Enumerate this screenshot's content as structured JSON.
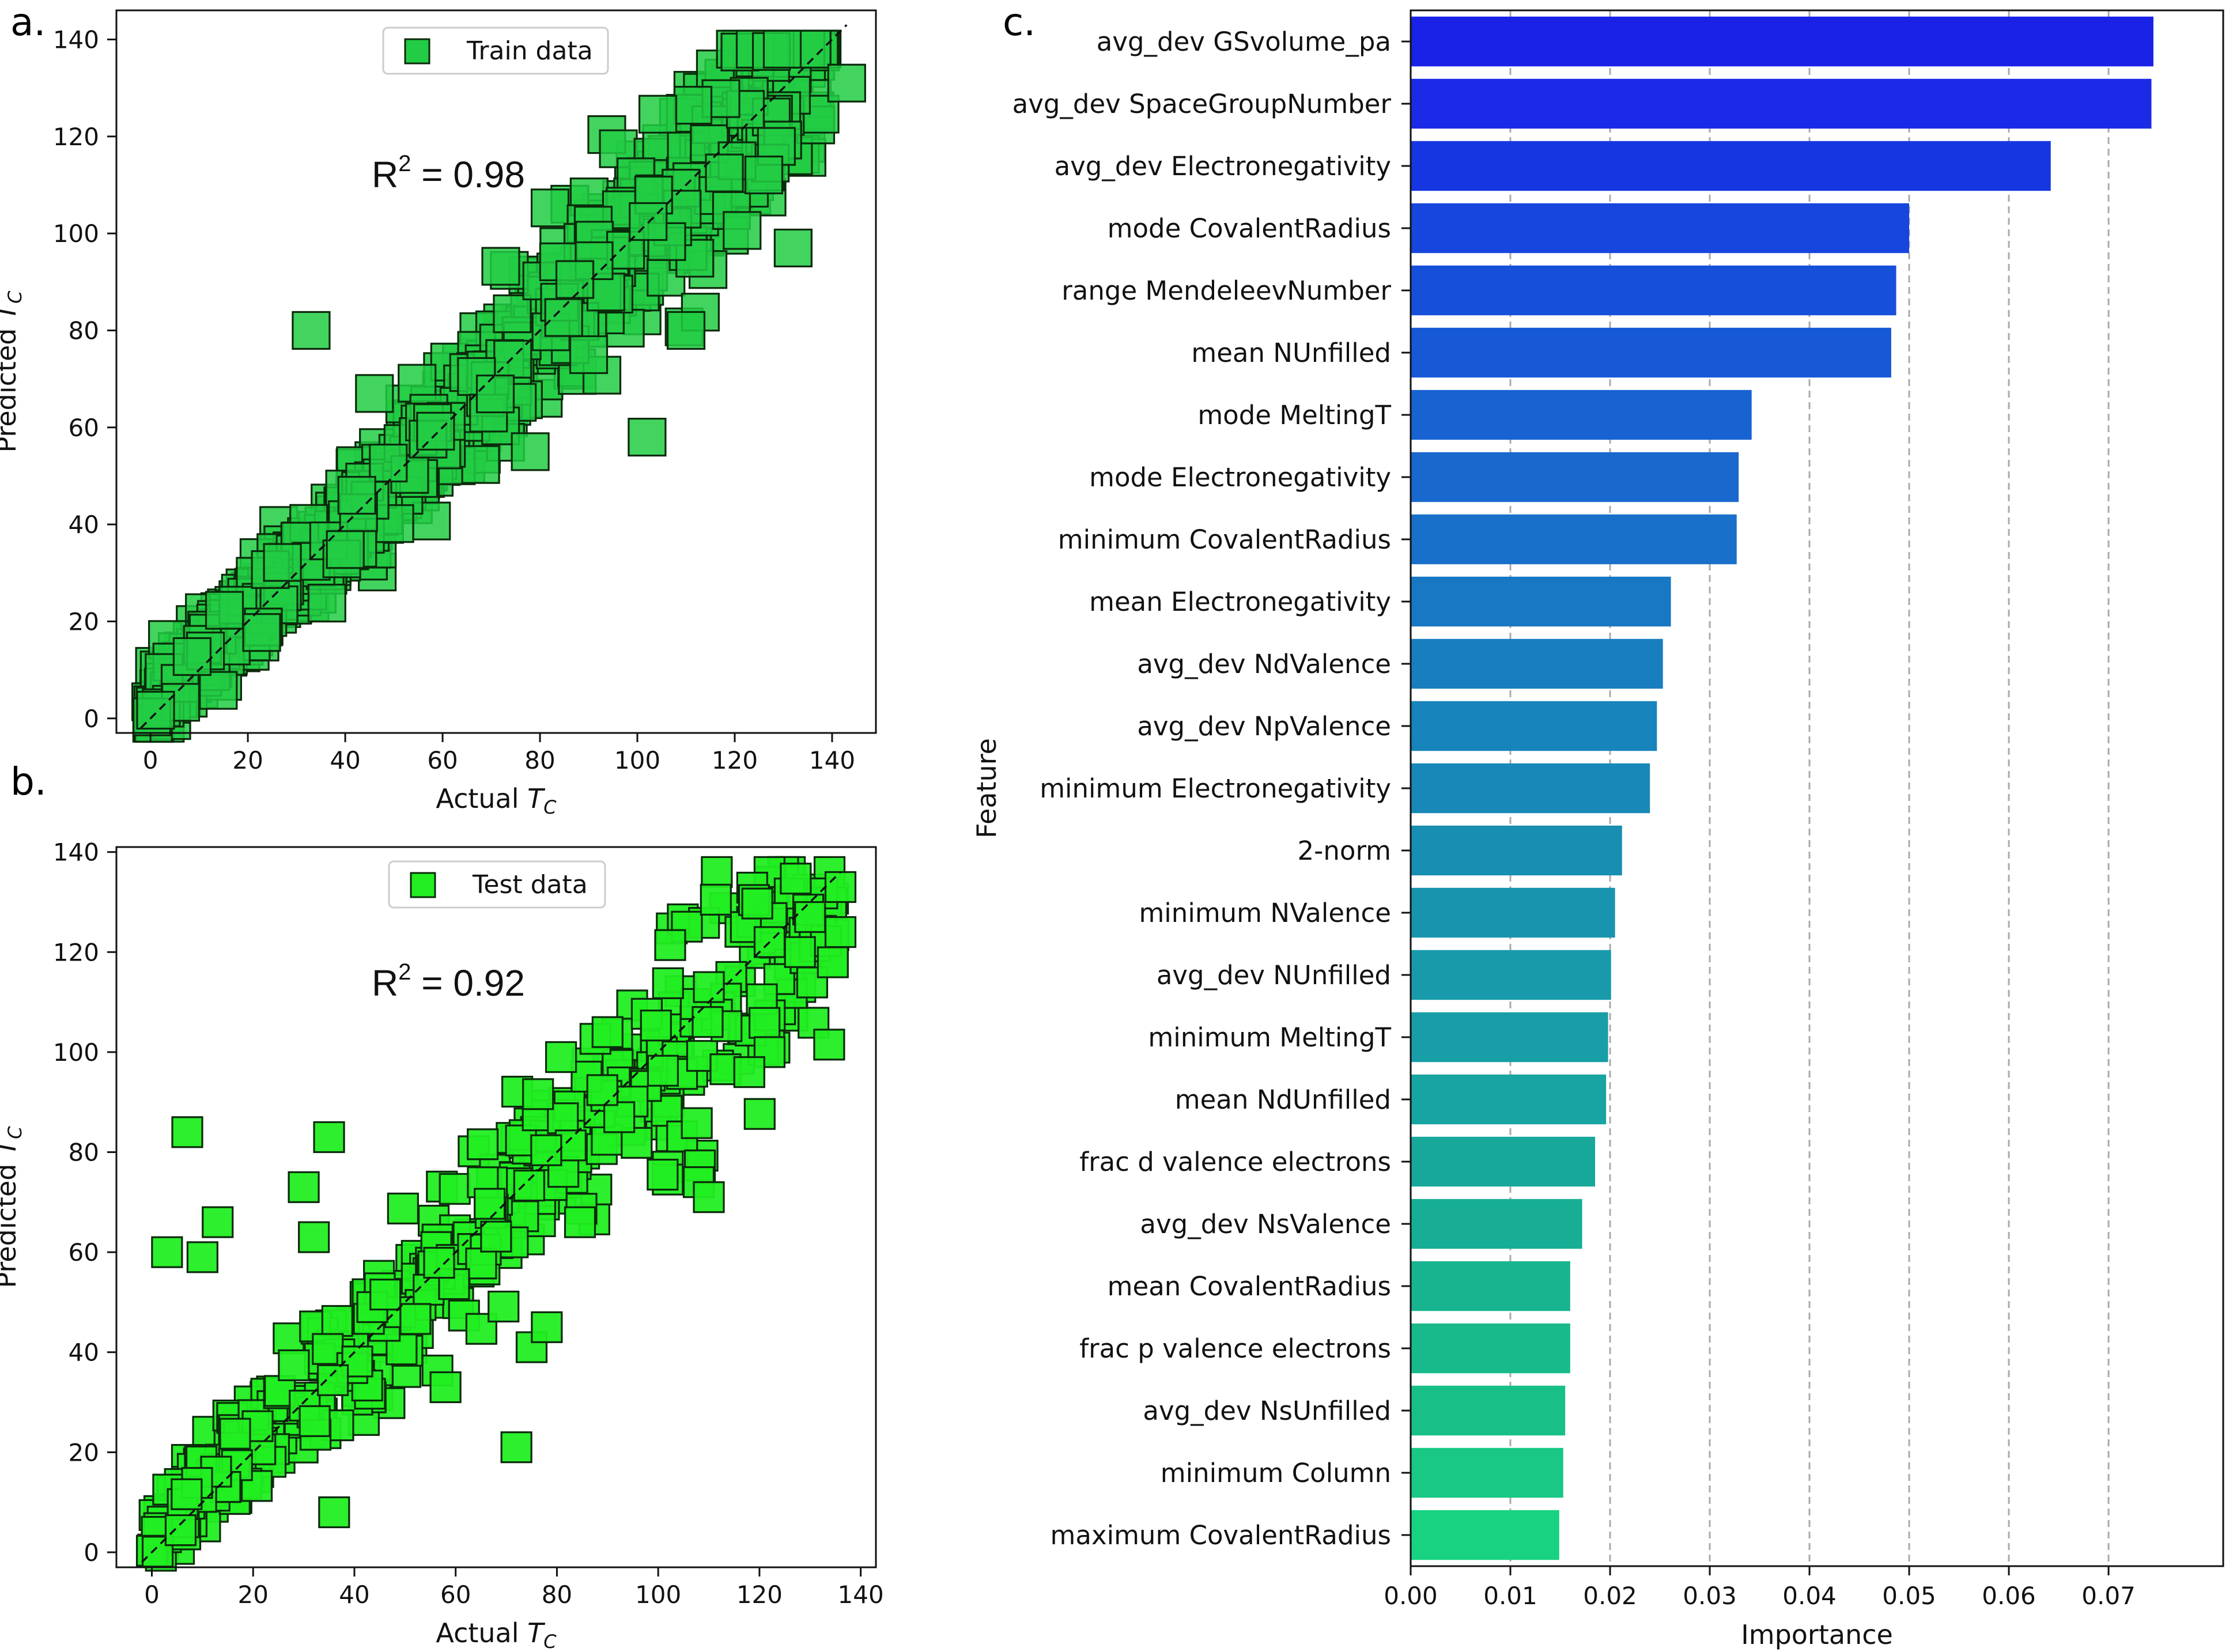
{
  "panels": {
    "a": "a.",
    "b": "b.",
    "c": "c."
  },
  "chart_data": [
    {
      "type": "scatter",
      "panel": "a",
      "legend": "Train data",
      "legend_loc": "top-center",
      "annotation_base": "R",
      "annotation_sup": "2",
      "annotation_value": " = 0.98",
      "xlabel_text": "Actual ",
      "xlabel_sym": "T",
      "xlabel_sub": "C",
      "ylabel_text": "Predicted ",
      "ylabel_sym": "T",
      "ylabel_sub": "C",
      "xlim": [
        -7,
        149
      ],
      "ylim": [
        -3,
        146
      ],
      "xticks": [
        0,
        20,
        40,
        60,
        80,
        100,
        120,
        140
      ],
      "yticks": [
        0,
        20,
        40,
        60,
        80,
        100,
        120,
        140
      ],
      "diagonal": [
        [
          -2,
          -2
        ],
        [
          143,
          143
        ]
      ],
      "marker_color": "#22cc44",
      "outliers": [
        [
          132,
          97
        ],
        [
          102,
          58
        ],
        [
          46,
          67
        ],
        [
          143,
          131
        ],
        [
          33,
          80
        ],
        [
          90,
          75
        ],
        [
          78,
          55
        ],
        [
          110,
          80
        ]
      ]
    },
    {
      "type": "scatter",
      "panel": "b",
      "legend": "Test data",
      "legend_loc": "top-center",
      "annotation_base": "R",
      "annotation_sup": "2",
      "annotation_value": " = 0.92",
      "xlabel_text": "Actual ",
      "xlabel_sym": "T",
      "xlabel_sub": "C",
      "ylabel_text": "Predicted ",
      "ylabel_sym": "T",
      "ylabel_sub": "C",
      "xlim": [
        -7,
        143
      ],
      "ylim": [
        -3,
        141
      ],
      "xticks": [
        0,
        20,
        40,
        60,
        80,
        100,
        120,
        140
      ],
      "yticks": [
        0,
        20,
        40,
        60,
        80,
        100,
        120,
        140
      ],
      "diagonal": [
        [
          -2,
          -2
        ],
        [
          136,
          136
        ]
      ],
      "marker_color": "#22ee22",
      "outliers": [
        [
          7,
          84
        ],
        [
          35,
          83
        ],
        [
          72,
          21
        ],
        [
          3,
          60
        ],
        [
          10,
          59
        ],
        [
          13,
          66
        ],
        [
          36,
          8
        ],
        [
          122,
          100
        ],
        [
          118,
          96
        ],
        [
          128,
          120
        ],
        [
          136,
          124
        ],
        [
          110,
          113
        ],
        [
          136,
          133
        ],
        [
          122,
          122
        ],
        [
          130,
          127
        ],
        [
          108,
          74
        ],
        [
          110,
          71
        ],
        [
          75,
          41
        ],
        [
          78,
          45
        ],
        [
          58,
          33
        ],
        [
          30,
          73
        ],
        [
          32,
          63
        ],
        [
          90,
          104
        ]
      ]
    },
    {
      "type": "bar",
      "panel": "c",
      "orientation": "horizontal",
      "xlabel": "Importance",
      "ylabel": "Feature",
      "xlim": [
        0,
        0.0815
      ],
      "xticks": [
        "0.00",
        "0.01",
        "0.02",
        "0.03",
        "0.04",
        "0.05",
        "0.06",
        "0.07"
      ],
      "grid": "x-dashed",
      "categories": [
        "avg_dev GSvolume_pa",
        "avg_dev SpaceGroupNumber",
        "avg_dev Electronegativity",
        "mode CovalentRadius",
        "range MendeleevNumber",
        "mean NUnfilled",
        "mode MeltingT",
        "mode Electronegativity",
        "minimum CovalentRadius",
        "mean Electronegativity",
        "avg_dev NdValence",
        "avg_dev NpValence",
        "minimum Electronegativity",
        "2-norm",
        "minimum NValence",
        "avg_dev NUnfilled",
        "minimum MeltingT",
        "mean NdUnfilled",
        "frac d valence electrons",
        "avg_dev NsValence",
        "mean CovalentRadius",
        "frac p valence electrons",
        "avg_dev NsUnfilled",
        "minimum Column",
        "maximum CovalentRadius"
      ],
      "values": [
        0.0745,
        0.0743,
        0.0642,
        0.05,
        0.0487,
        0.0482,
        0.0342,
        0.0329,
        0.0327,
        0.0261,
        0.0253,
        0.0247,
        0.024,
        0.0212,
        0.0205,
        0.0201,
        0.0198,
        0.0196,
        0.0185,
        0.0172,
        0.016,
        0.016,
        0.0155,
        0.0153,
        0.0149
      ],
      "colors": [
        "#1a22e8",
        "#1a2ae6",
        "#1636e2",
        "#1646de",
        "#1650da",
        "#1658d6",
        "#1862d2",
        "#1868ce",
        "#1870ca",
        "#1878c4",
        "#187ec0",
        "#1884bc",
        "#1888b8",
        "#188eb2",
        "#1894ae",
        "#189aaa",
        "#189ea6",
        "#18a4a0",
        "#18a89a",
        "#18ae96",
        "#18b490",
        "#18ba8c",
        "#18c088",
        "#18c884",
        "#18d282"
      ]
    }
  ]
}
